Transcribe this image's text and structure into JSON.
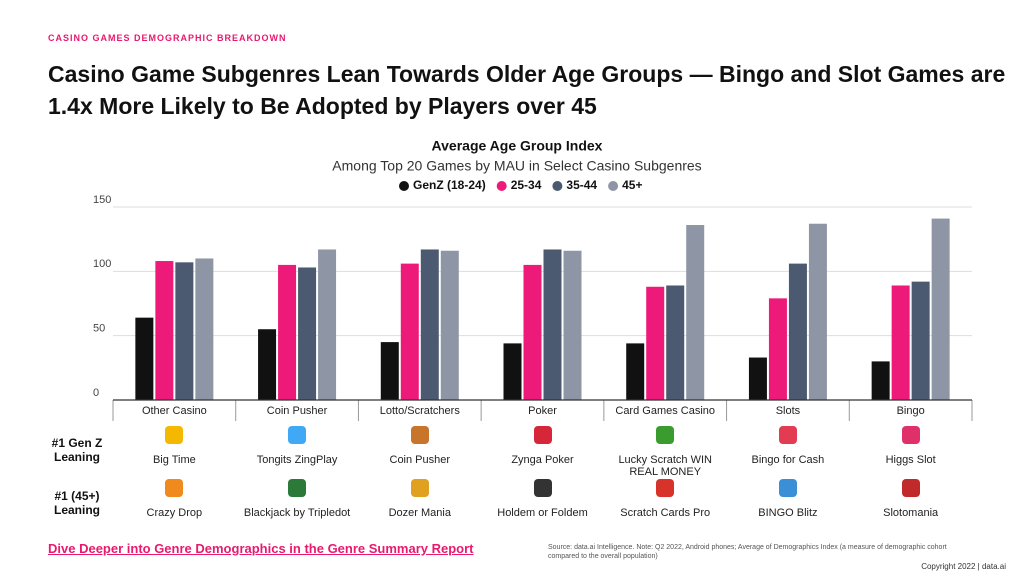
{
  "eyebrow": "CASINO GAMES DEMOGRAPHIC BREAKDOWN",
  "headline": "Casino Game Subgenres Lean Towards Older Age Groups —  Bingo and Slot Games are 1.4x More Likely to Be Adopted by Players over 45",
  "chart_data": {
    "type": "bar",
    "title": "Average Age Group Index",
    "subtitle": "Among Top 20 Games by MAU in Select Casino Subgenres",
    "categories": [
      "Other Casino",
      "Coin Pusher",
      "Lotto/Scratchers",
      "Poker",
      "Card Games Casino",
      "Slots",
      "Bingo"
    ],
    "series": [
      {
        "name": "GenZ (18-24)",
        "color": "#111111",
        "values": [
          64,
          55,
          45,
          44,
          44,
          33,
          30
        ]
      },
      {
        "name": "25-34",
        "color": "#ee1a7a",
        "values": [
          108,
          105,
          106,
          105,
          88,
          79,
          89
        ]
      },
      {
        "name": "35-44",
        "color": "#4b5a70",
        "values": [
          107,
          103,
          117,
          117,
          89,
          106,
          92
        ]
      },
      {
        "name": "45+",
        "color": "#8e96a6",
        "values": [
          110,
          117,
          116,
          116,
          136,
          137,
          141
        ]
      }
    ],
    "ylim": [
      0,
      150
    ],
    "yticks": [
      0,
      50,
      100,
      150
    ],
    "grid": true,
    "legend": "top"
  },
  "leaders": {
    "rows": [
      {
        "label": "#1 Gen Z Leaning",
        "apps": [
          "Big Time",
          "Tongits ZingPlay",
          "Coin Pusher",
          "Zynga Poker",
          "Lucky Scratch WIN REAL MONEY",
          "Bingo for Cash",
          "Higgs Slot"
        ]
      },
      {
        "label": "#1 (45+) Leaning",
        "apps": [
          "Crazy Drop",
          "Blackjack by Tripledot",
          "Dozer Mania",
          "Holdem or Foldem",
          "Scratch Cards Pro",
          "BINGO Blitz",
          "Slotomania"
        ]
      }
    ]
  },
  "link": "Dive Deeper into Genre Demographics in the Genre Summary Report",
  "source": "Source: data.ai Intelligence. Note:  Q2 2022, Android phones;  Average of Demographics Index (a measure of demographic cohort compared to the overall population)",
  "copyright": "Copyright 2022 | data.ai"
}
